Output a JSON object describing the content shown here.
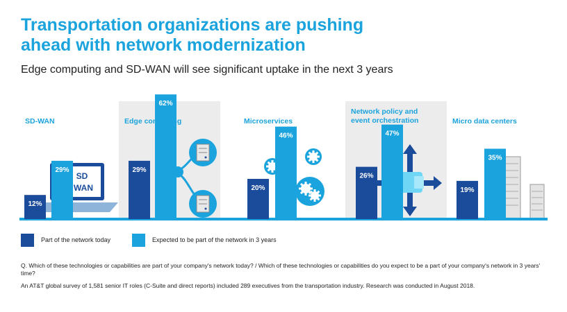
{
  "header": {
    "title": "Transportation organizations are pushing ahead with network modernization",
    "subtitle": "Edge computing and SD-WAN will see significant uptake in the next 3 years"
  },
  "colors": {
    "today": "#1b4b9b",
    "future": "#1aa3dc",
    "panel": "#ececec",
    "baseline": "#1aa3dc"
  },
  "chart_data": {
    "type": "bar",
    "categories": [
      "SD-WAN",
      "Edge computing",
      "Microservices",
      "Network policy and event orchestration",
      "Micro data centers"
    ],
    "series": [
      {
        "name": "Part of the network today",
        "values": [
          12,
          29,
          20,
          26,
          19
        ]
      },
      {
        "name": "Expected to be part of the network in 3 years",
        "values": [
          29,
          62,
          46,
          47,
          35
        ]
      }
    ],
    "value_suffix": "%",
    "ylim": [
      0,
      100
    ],
    "legend_position": "bottom-left",
    "grid": false
  },
  "illustrations": {
    "sdwan_screen_line1": "SD",
    "sdwan_screen_line2": "WAN",
    "icons": [
      "laptop-icon",
      "server-network-icon",
      "gears-icon",
      "arrows-hub-icon",
      "server-rack-icon"
    ]
  },
  "footnotes": {
    "question": "Q. Which of these technologies or capabilities are part of your company's network today? / Which of these technologies or capabilities do you expect to be a part of your company's network in 3 years' time?",
    "methodology": "An AT&T global survey of 1,581 senior IT roles (C-Suite and direct reports) included 289 executives from the transportation industry. Research was conducted in August 2018."
  }
}
